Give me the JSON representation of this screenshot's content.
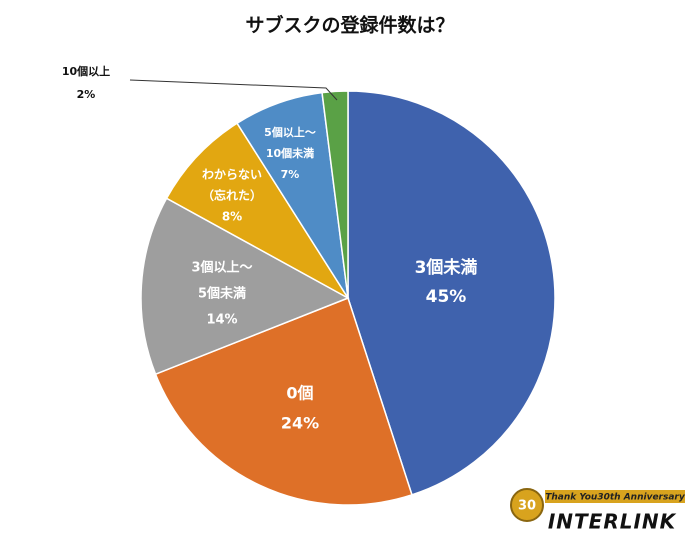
{
  "chart_data": {
    "type": "pie",
    "title": "サブスクの登録件数は？",
    "categories": [
      [
        "3個未満"
      ],
      [
        "0個"
      ],
      [
        "3個以上～",
        "5個未満"
      ],
      [
        "わからない",
        "（忘れた）"
      ],
      [
        "5個以上～",
        "10個未満"
      ],
      [
        "10個以上"
      ]
    ],
    "values": [
      45,
      24,
      14,
      8,
      7,
      2
    ],
    "value_labels": [
      "45%",
      "24%",
      "14%",
      "8%",
      "7%",
      "2%"
    ],
    "colors": [
      "#3f62ad",
      "#de7028",
      "#9e9e9e",
      "#e2a711",
      "#4f8cc6",
      "#5aa146"
    ]
  },
  "logo": {
    "badge": "30",
    "tagline": "Thank You30th Anniversary",
    "name": "INTERLINK"
  }
}
